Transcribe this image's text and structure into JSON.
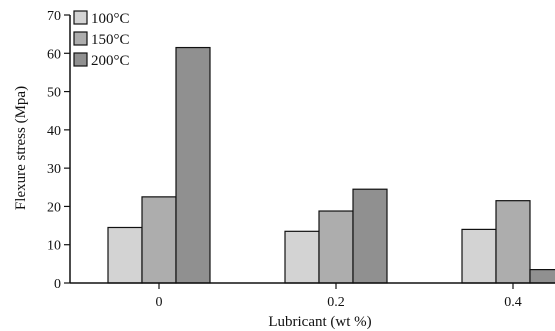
{
  "chart_data": {
    "type": "bar",
    "categories": [
      "0",
      "0.2",
      "0.4"
    ],
    "series": [
      {
        "name": "100°C",
        "values": [
          14.5,
          13.5,
          14.0
        ],
        "color": "#d3d3d3"
      },
      {
        "name": "150°C",
        "values": [
          22.5,
          18.8,
          21.5
        ],
        "color": "#adadad"
      },
      {
        "name": "200°C",
        "values": [
          61.5,
          24.5,
          3.5
        ],
        "color": "#909090"
      }
    ],
    "xlabel": "Lubricant (wt %)",
    "ylabel": "Flexure stress (Mpa)",
    "ylim": [
      0,
      70
    ],
    "yticks": [
      "0",
      "10",
      "20",
      "30",
      "40",
      "50",
      "60",
      "70"
    ],
    "grid": false,
    "legend_position": "top-left"
  }
}
